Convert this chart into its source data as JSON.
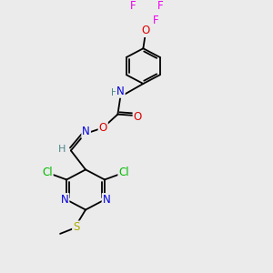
{
  "bg_color": "#ebebeb",
  "bond_color": "#000000",
  "atom_colors": {
    "N": "#0000dd",
    "O": "#dd0000",
    "S": "#aaaa00",
    "Cl": "#00bb00",
    "F": "#ee00ee",
    "H": "#4a8888"
  },
  "figsize": [
    3.0,
    3.0
  ],
  "dpi": 100,
  "xlim": [
    0,
    10
  ],
  "ylim": [
    0,
    10
  ],
  "lw": 1.3,
  "fs": 8.5
}
